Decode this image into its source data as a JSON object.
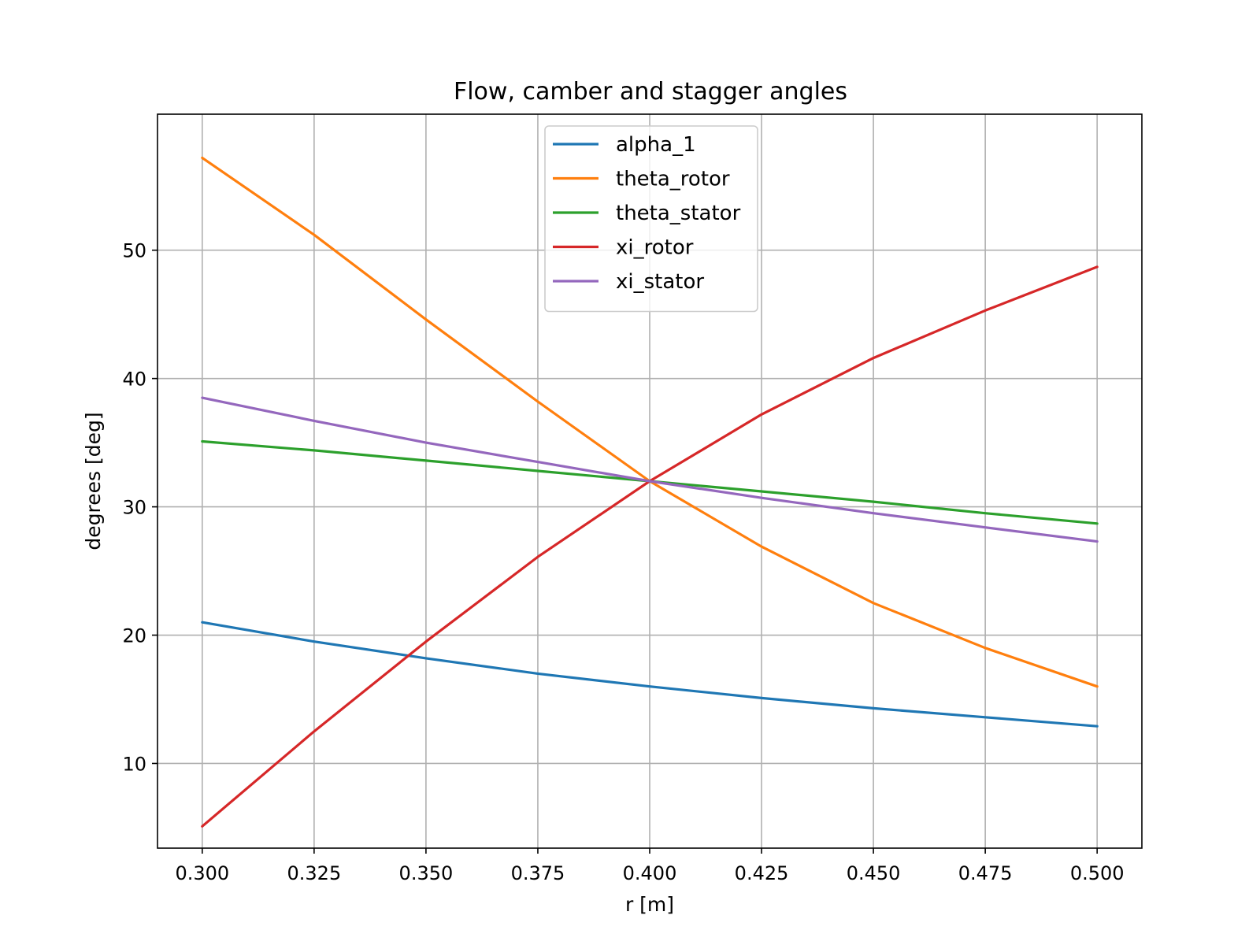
{
  "chart_data": {
    "type": "line",
    "title": "Flow, camber and stagger angles",
    "xlabel": "r [m]",
    "ylabel": "degrees [deg]",
    "xlim": [
      0.29,
      0.51
    ],
    "ylim": [
      3.4,
      60.6
    ],
    "xticks": [
      0.3,
      0.325,
      0.35,
      0.375,
      0.4,
      0.425,
      0.45,
      0.475,
      0.5
    ],
    "xtick_labels": [
      "0.300",
      "0.325",
      "0.350",
      "0.375",
      "0.400",
      "0.425",
      "0.450",
      "0.475",
      "0.500"
    ],
    "yticks": [
      10,
      20,
      30,
      40,
      50
    ],
    "ytick_labels": [
      "10",
      "20",
      "30",
      "40",
      "50"
    ],
    "grid": true,
    "legend_position": "top-center",
    "x": [
      0.3,
      0.325,
      0.35,
      0.375,
      0.4,
      0.425,
      0.45,
      0.475,
      0.5
    ],
    "series": [
      {
        "name": "alpha_1",
        "color": "#1f77b4",
        "values": [
          21.0,
          19.5,
          18.2,
          17.0,
          16.0,
          15.1,
          14.3,
          13.6,
          12.9
        ]
      },
      {
        "name": "theta_rotor",
        "color": "#ff7f0e",
        "values": [
          57.2,
          51.2,
          44.6,
          38.2,
          32.0,
          26.9,
          22.5,
          19.0,
          16.0
        ]
      },
      {
        "name": "theta_stator",
        "color": "#2ca02c",
        "values": [
          35.1,
          34.4,
          33.6,
          32.8,
          32.0,
          31.2,
          30.4,
          29.5,
          28.7
        ]
      },
      {
        "name": "xi_rotor",
        "color": "#d62728",
        "values": [
          5.1,
          12.5,
          19.5,
          26.1,
          32.0,
          37.2,
          41.6,
          45.3,
          48.7
        ]
      },
      {
        "name": "xi_stator",
        "color": "#9467bd",
        "values": [
          38.5,
          36.7,
          35.0,
          33.5,
          32.0,
          30.7,
          29.5,
          28.4,
          27.3
        ]
      }
    ]
  }
}
